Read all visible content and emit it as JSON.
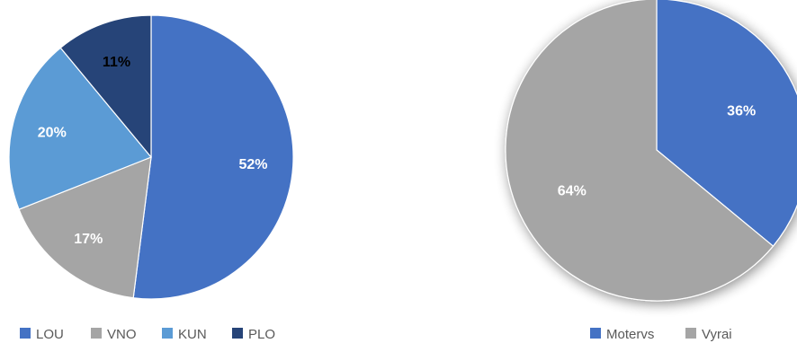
{
  "chart_data": [
    {
      "type": "pie",
      "categories": [
        "LOU",
        "VNO",
        "KUN",
        "PLO"
      ],
      "values": [
        52,
        17,
        20,
        11
      ],
      "labels": [
        "52%",
        "17%",
        "20%",
        "11%"
      ],
      "colors": [
        "#4472C4",
        "#A5A5A5",
        "#5B9BD5",
        "#264478"
      ],
      "label_colors": [
        "#ffffff",
        "#ffffff",
        "#ffffff",
        "#000000"
      ],
      "start_angle_deg": 0,
      "direction": "clockwise",
      "legend": "bottom-left"
    },
    {
      "type": "pie",
      "categories": [
        "Motervs",
        "Vyrai"
      ],
      "values": [
        36,
        64
      ],
      "labels": [
        "36%",
        "64%"
      ],
      "colors": [
        "#4472C4",
        "#A5A5A5"
      ],
      "label_colors": [
        "#ffffff",
        "#ffffff"
      ],
      "start_angle_deg": 0,
      "direction": "clockwise",
      "shadow": true,
      "legend": "bottom-right"
    }
  ]
}
